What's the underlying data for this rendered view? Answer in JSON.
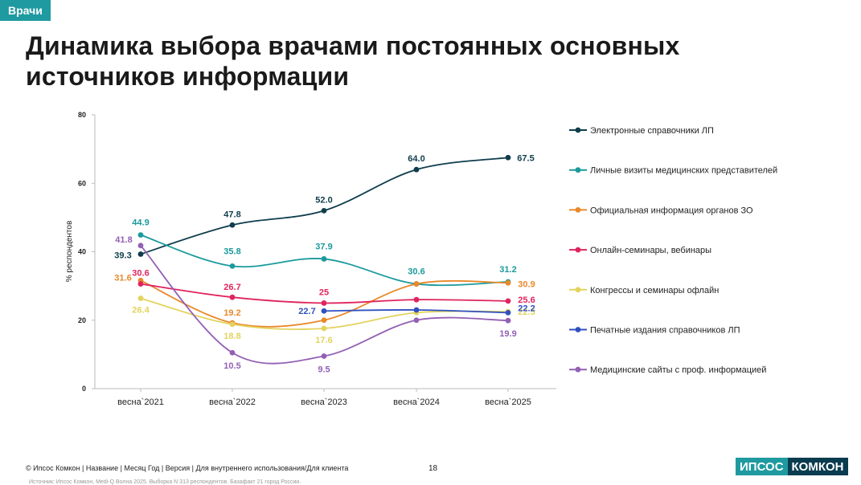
{
  "tag": "Врачи",
  "title": "Динамика выбора врачами постоянных основных источников информации",
  "footer": {
    "left": "© Ипсос Комкон | Название | Месяц Год | Версия | Для внутреннего использования/Для клиента",
    "page": "18",
    "logo_a": "ИПСОС",
    "logo_b": "КОМКОН",
    "source": "Источник: Ипсос Комкон, Medi-Q Волна 2025. Выборка N 313 респондентов. Базафакт 21 город России."
  },
  "chart_data": {
    "type": "line",
    "ylabel": "% респондентов",
    "ylim": [
      0,
      80
    ],
    "yticks": [
      0,
      20,
      40,
      60,
      80
    ],
    "categories": [
      "весна`2021",
      "весна`2022",
      "весна`2023",
      "весна`2024",
      "весна`2025"
    ],
    "legend_position": "right",
    "series": [
      {
        "name": "Электронные справочники ЛП",
        "color": "#0f3d4c",
        "values": [
          39.3,
          47.8,
          52.0,
          64.0,
          67.5
        ],
        "labels": [
          "39.3",
          "47.8",
          "52.0",
          "64.0",
          "67.5"
        ]
      },
      {
        "name": "Личные визиты медицинских представителей",
        "color": "#1b9a9c",
        "values": [
          44.9,
          35.8,
          37.9,
          30.6,
          31.2
        ],
        "labels": [
          "44.9",
          "35.8",
          "37.9",
          "30.6",
          "31.2"
        ]
      },
      {
        "name": "Официальная информация органов ЗО",
        "color": "#e8892b",
        "values": [
          31.6,
          19.2,
          20.0,
          30.6,
          30.9
        ],
        "labels": [
          "31.6",
          "19.2",
          "",
          "",
          "30.9"
        ]
      },
      {
        "name": "Онлайн-семинары, вебинары",
        "color": "#e0245e",
        "values": [
          30.6,
          26.7,
          25.0,
          26.0,
          25.6
        ],
        "labels": [
          "30.6",
          "26.7",
          "25",
          "",
          "25.6"
        ]
      },
      {
        "name": "Конгрессы и семинары офлайн",
        "color": "#e3d35e",
        "values": [
          26.4,
          18.8,
          17.6,
          22.2,
          22.5
        ],
        "labels": [
          "26.4",
          "18.8",
          "17.6",
          "",
          "22.5"
        ]
      },
      {
        "name": "Печатные издания справочников ЛП",
        "color": "#3150c0",
        "values": [
          null,
          null,
          22.7,
          23.0,
          22.2
        ],
        "labels": [
          "",
          "",
          "22.7",
          "",
          "22.2"
        ]
      },
      {
        "name": "Медицинские сайты с проф. информацией",
        "color": "#9360b5",
        "values": [
          41.8,
          10.5,
          9.5,
          20.0,
          19.9
        ],
        "labels": [
          "41.8",
          "10.5",
          "9.5",
          "",
          "19.9"
        ]
      }
    ]
  }
}
